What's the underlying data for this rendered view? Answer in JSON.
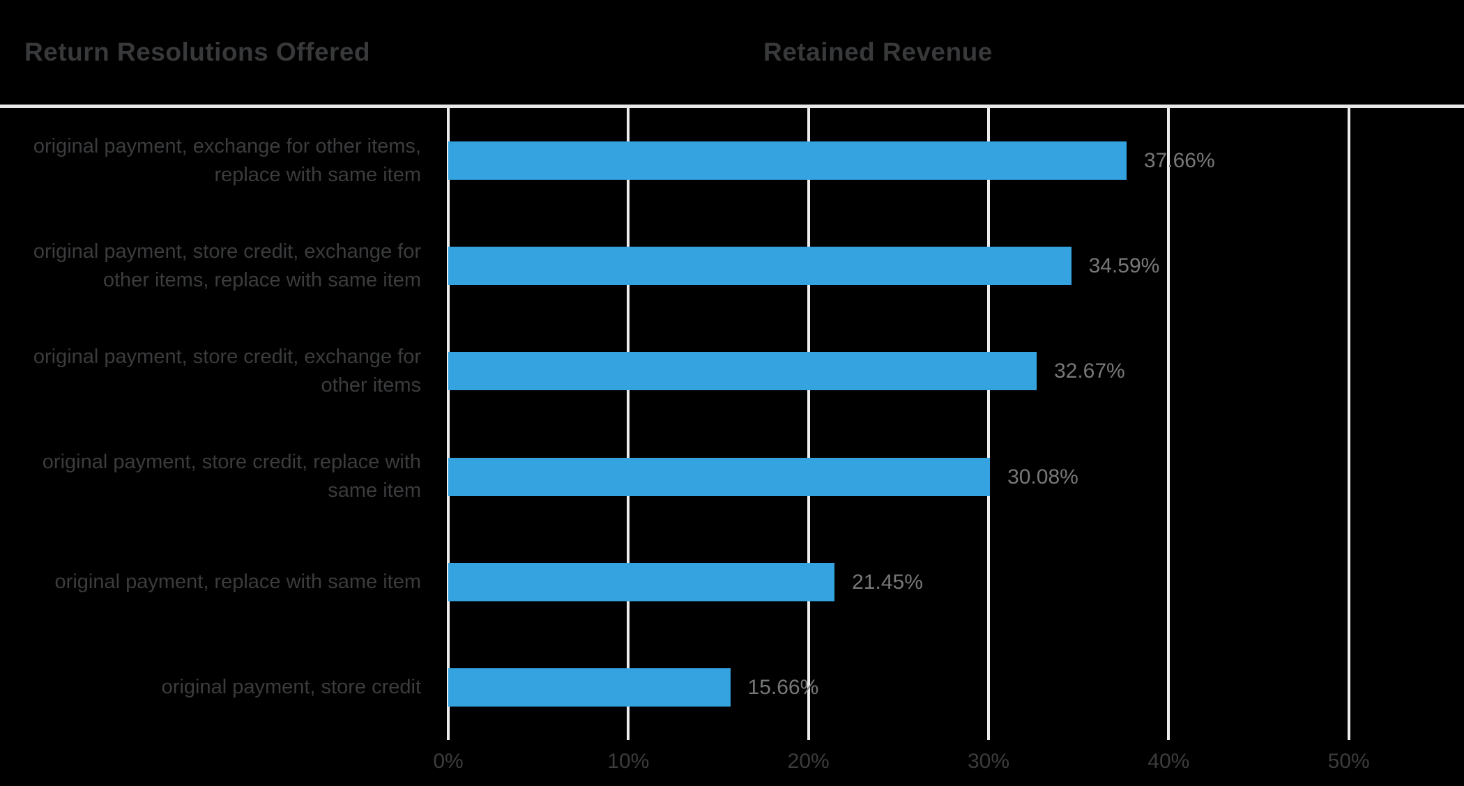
{
  "header": {
    "left_title": "Return Resolutions Offered",
    "right_title": "Retained Revenue"
  },
  "colors": {
    "background": "#000000",
    "bar": "#34a3e0",
    "gridline": "#ececec",
    "top_line": "#e8e8e8",
    "header_text": "#38393b",
    "category_text": "#3b3c3e",
    "value_text": "#77787a",
    "tick_text": "#3b3c3e"
  },
  "chart_data": {
    "type": "bar",
    "orientation": "horizontal",
    "title_left_column": "Return Resolutions Offered",
    "title_right_column": "Retained Revenue",
    "categories": [
      "original payment, exchange for other items, replace with same item",
      "original payment, store credit, exchange for other items, replace with same item",
      "original payment, store credit, exchange for other items",
      "original payment, store credit, replace with same item",
      "original payment, replace with same item",
      "original payment, store credit"
    ],
    "values": [
      37.66,
      34.59,
      32.67,
      30.08,
      21.45,
      15.66
    ],
    "value_labels": [
      "37.66%",
      "34.59%",
      "32.67%",
      "30.08%",
      "21.45%",
      "15.66%"
    ],
    "x_ticks": [
      0,
      10,
      20,
      30,
      40,
      50
    ],
    "x_tick_labels": [
      "0%",
      "10%",
      "20%",
      "30%",
      "40%",
      "50%"
    ],
    "xlim": [
      0,
      56.4
    ],
    "grid": "vertical-only",
    "legend": "none",
    "value_label_position": "right-of-bar"
  }
}
